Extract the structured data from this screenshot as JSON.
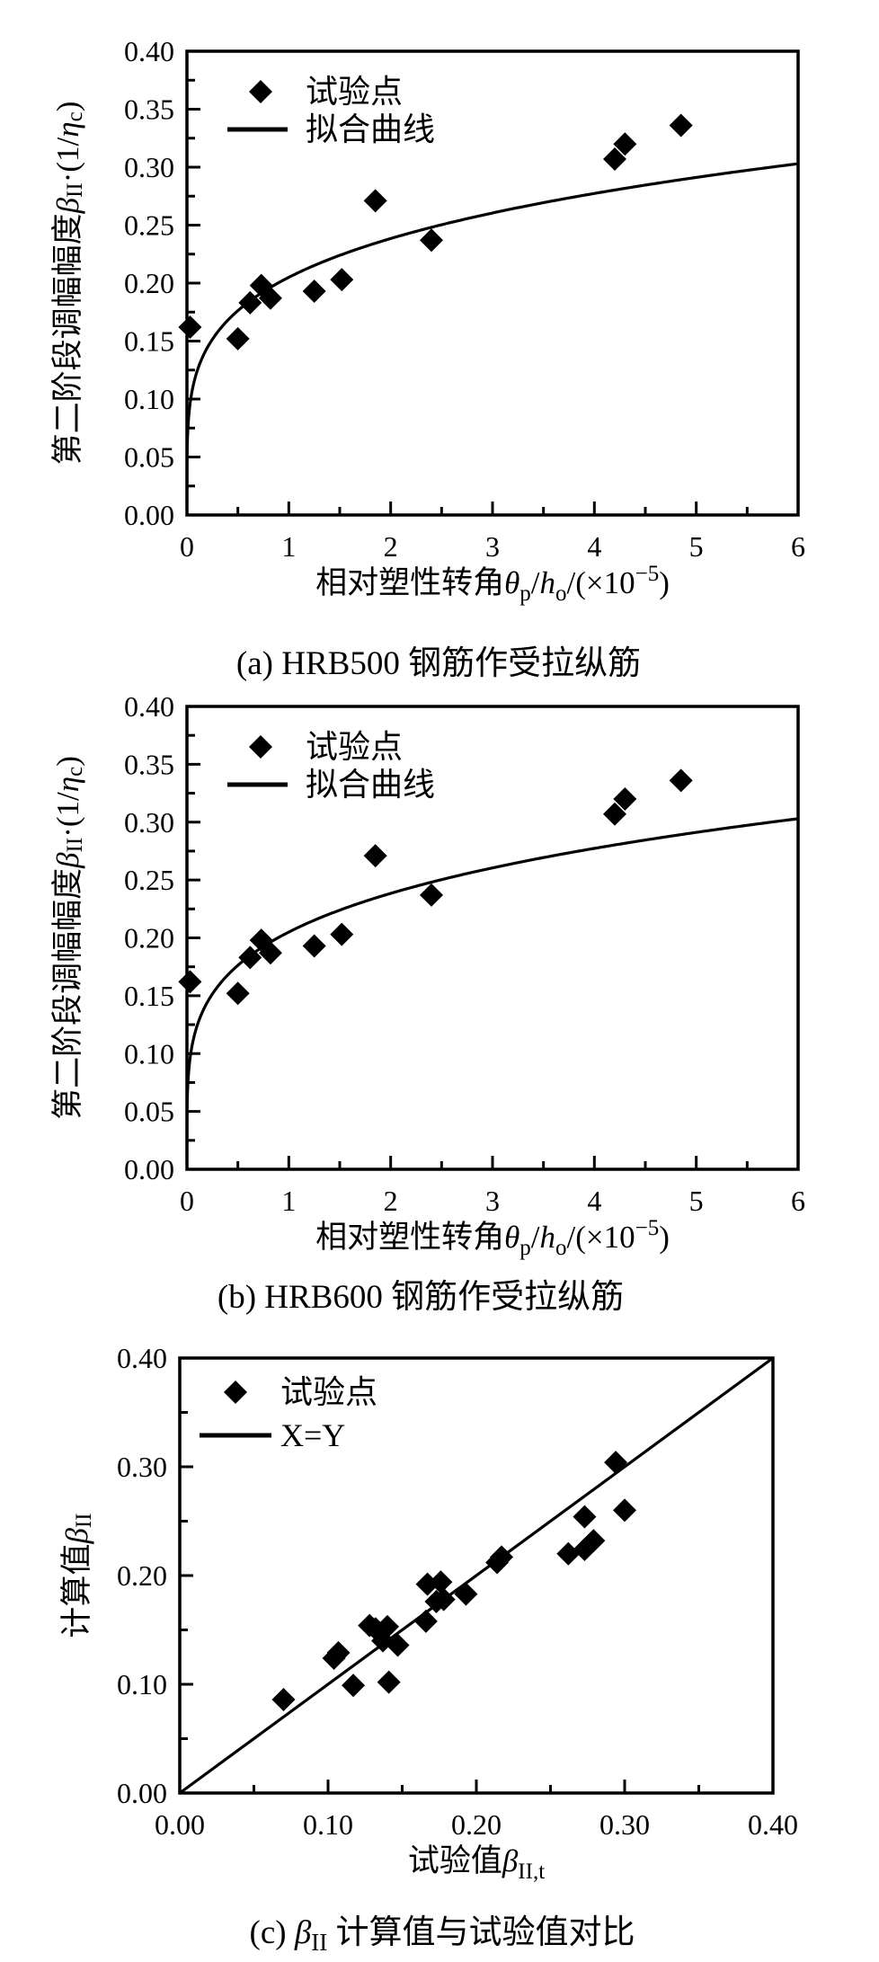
{
  "colors": {
    "ink": "#000000",
    "background": "#ffffff"
  },
  "chart_data": [
    {
      "id": "a",
      "type": "scatter",
      "caption_segments": [
        {
          "t": "(a) HRB500 钢筋作受拉纵筋"
        }
      ],
      "xlabel_segments": [
        {
          "t": "相对塑性转角"
        },
        {
          "t": "θ",
          "italic": true
        },
        {
          "t": "p",
          "script": "sub"
        },
        {
          "t": "/"
        },
        {
          "t": "h",
          "italic": true
        },
        {
          "t": "o",
          "script": "sub"
        },
        {
          "t": "/(×10"
        },
        {
          "t": "−5",
          "script": "sup"
        },
        {
          "t": ")"
        }
      ],
      "ylabel_segments": [
        {
          "t": "第二阶段调幅幅度"
        },
        {
          "t": "β",
          "italic": true
        },
        {
          "t": "II",
          "script": "sub"
        },
        {
          "t": "·(1/"
        },
        {
          "t": "η",
          "italic": true
        },
        {
          "t": "c",
          "script": "sub"
        },
        {
          "t": ")"
        }
      ],
      "xlim": [
        0,
        6
      ],
      "ylim": [
        0,
        0.4
      ],
      "x_ticks": {
        "values": [
          0,
          1,
          2,
          3,
          4,
          5,
          6
        ],
        "labels": [
          "0",
          "1",
          "2",
          "3",
          "4",
          "5",
          "6"
        ],
        "minor_step": 0.5
      },
      "y_ticks": {
        "values": [
          0,
          0.05,
          0.1,
          0.15,
          0.2,
          0.25,
          0.3,
          0.35,
          0.4
        ],
        "labels": [
          "0.00",
          "0.05",
          "0.10",
          "0.15",
          "0.20",
          "0.25",
          "0.30",
          "0.35",
          "0.40"
        ],
        "minor_step": 0.025
      },
      "legend": [
        {
          "marker": "diamond",
          "label": "试验点"
        },
        {
          "marker": "line",
          "label": "拟合曲线"
        }
      ],
      "points": [
        [
          0.03,
          0.162
        ],
        [
          0.5,
          0.152
        ],
        [
          0.62,
          0.183
        ],
        [
          0.73,
          0.198
        ],
        [
          0.82,
          0.187
        ],
        [
          1.25,
          0.193
        ],
        [
          1.52,
          0.203
        ],
        [
          1.85,
          0.271
        ],
        [
          2.4,
          0.237
        ],
        [
          4.2,
          0.307
        ],
        [
          4.3,
          0.32
        ],
        [
          4.85,
          0.336
        ]
      ],
      "curve": {
        "kind": "power",
        "coef": 0.205,
        "exp": 0.218,
        "domain": [
          1e-06,
          6
        ]
      }
    },
    {
      "id": "b",
      "type": "scatter",
      "caption_segments": [
        {
          "t": "(b) HRB600 钢筋作受拉纵筋"
        }
      ],
      "xlabel_segments": [
        {
          "t": "相对塑性转角"
        },
        {
          "t": "θ",
          "italic": true
        },
        {
          "t": "p",
          "script": "sub"
        },
        {
          "t": "/"
        },
        {
          "t": "h",
          "italic": true
        },
        {
          "t": "o",
          "script": "sub"
        },
        {
          "t": "/(×10"
        },
        {
          "t": "−5",
          "script": "sup"
        },
        {
          "t": ")"
        }
      ],
      "ylabel_segments": [
        {
          "t": "第二阶段调幅幅度"
        },
        {
          "t": "β",
          "italic": true
        },
        {
          "t": "II",
          "script": "sub"
        },
        {
          "t": "·(1/"
        },
        {
          "t": "η",
          "italic": true
        },
        {
          "t": "c",
          "script": "sub"
        },
        {
          "t": ")"
        }
      ],
      "xlim": [
        0,
        6
      ],
      "ylim": [
        0,
        0.4
      ],
      "x_ticks": {
        "values": [
          0,
          1,
          2,
          3,
          4,
          5,
          6
        ],
        "labels": [
          "0",
          "1",
          "2",
          "3",
          "4",
          "5",
          "6"
        ],
        "minor_step": 0.5
      },
      "y_ticks": {
        "values": [
          0,
          0.05,
          0.1,
          0.15,
          0.2,
          0.25,
          0.3,
          0.35,
          0.4
        ],
        "labels": [
          "0.00",
          "0.05",
          "0.10",
          "0.15",
          "0.20",
          "0.25",
          "0.30",
          "0.35",
          "0.40"
        ],
        "minor_step": 0.025
      },
      "legend": [
        {
          "marker": "diamond",
          "label": "试验点"
        },
        {
          "marker": "line",
          "label": "拟合曲线"
        }
      ],
      "points": [
        [
          0.03,
          0.162
        ],
        [
          0.5,
          0.152
        ],
        [
          0.62,
          0.183
        ],
        [
          0.73,
          0.198
        ],
        [
          0.82,
          0.187
        ],
        [
          1.25,
          0.193
        ],
        [
          1.52,
          0.203
        ],
        [
          1.85,
          0.271
        ],
        [
          2.4,
          0.237
        ],
        [
          4.2,
          0.307
        ],
        [
          4.3,
          0.32
        ],
        [
          4.85,
          0.336
        ]
      ],
      "curve": {
        "kind": "power",
        "coef": 0.205,
        "exp": 0.218,
        "domain": [
          1e-06,
          6
        ]
      }
    },
    {
      "id": "c",
      "type": "scatter",
      "caption_segments": [
        {
          "t": "(c) "
        },
        {
          "t": "β",
          "italic": true
        },
        {
          "t": "II",
          "script": "sub"
        },
        {
          "t": " 计算值与试验值对比"
        }
      ],
      "xlabel_segments": [
        {
          "t": "试验值"
        },
        {
          "t": "β",
          "italic": true
        },
        {
          "t": "II,t",
          "script": "sub"
        }
      ],
      "ylabel_segments": [
        {
          "t": "计算值"
        },
        {
          "t": "β",
          "italic": true
        },
        {
          "t": "II",
          "script": "sub"
        }
      ],
      "xlim": [
        0,
        0.4
      ],
      "ylim": [
        0,
        0.4
      ],
      "x_ticks": {
        "values": [
          0,
          0.1,
          0.2,
          0.3,
          0.4
        ],
        "labels": [
          "0.00",
          "0.10",
          "0.20",
          "0.30",
          "0.40"
        ],
        "minor_step": 0.05
      },
      "y_ticks": {
        "values": [
          0,
          0.1,
          0.2,
          0.3,
          0.4
        ],
        "labels": [
          "0.00",
          "0.10",
          "0.20",
          "0.30",
          "0.40"
        ],
        "minor_step": 0.05
      },
      "legend": [
        {
          "marker": "diamond",
          "label": "试验点"
        },
        {
          "marker": "line",
          "label": "X=Y"
        }
      ],
      "points": [
        [
          0.07,
          0.086
        ],
        [
          0.104,
          0.124
        ],
        [
          0.107,
          0.129
        ],
        [
          0.117,
          0.099
        ],
        [
          0.128,
          0.154
        ],
        [
          0.132,
          0.151
        ],
        [
          0.14,
          0.153
        ],
        [
          0.137,
          0.14
        ],
        [
          0.147,
          0.136
        ],
        [
          0.141,
          0.102
        ],
        [
          0.166,
          0.158
        ],
        [
          0.167,
          0.192
        ],
        [
          0.176,
          0.194
        ],
        [
          0.173,
          0.176
        ],
        [
          0.178,
          0.178
        ],
        [
          0.193,
          0.183
        ],
        [
          0.214,
          0.212
        ],
        [
          0.217,
          0.217
        ],
        [
          0.262,
          0.22
        ],
        [
          0.273,
          0.224
        ],
        [
          0.279,
          0.232
        ],
        [
          0.273,
          0.254
        ],
        [
          0.3,
          0.26
        ],
        [
          0.294,
          0.304
        ]
      ],
      "curve": {
        "kind": "identity"
      }
    }
  ]
}
